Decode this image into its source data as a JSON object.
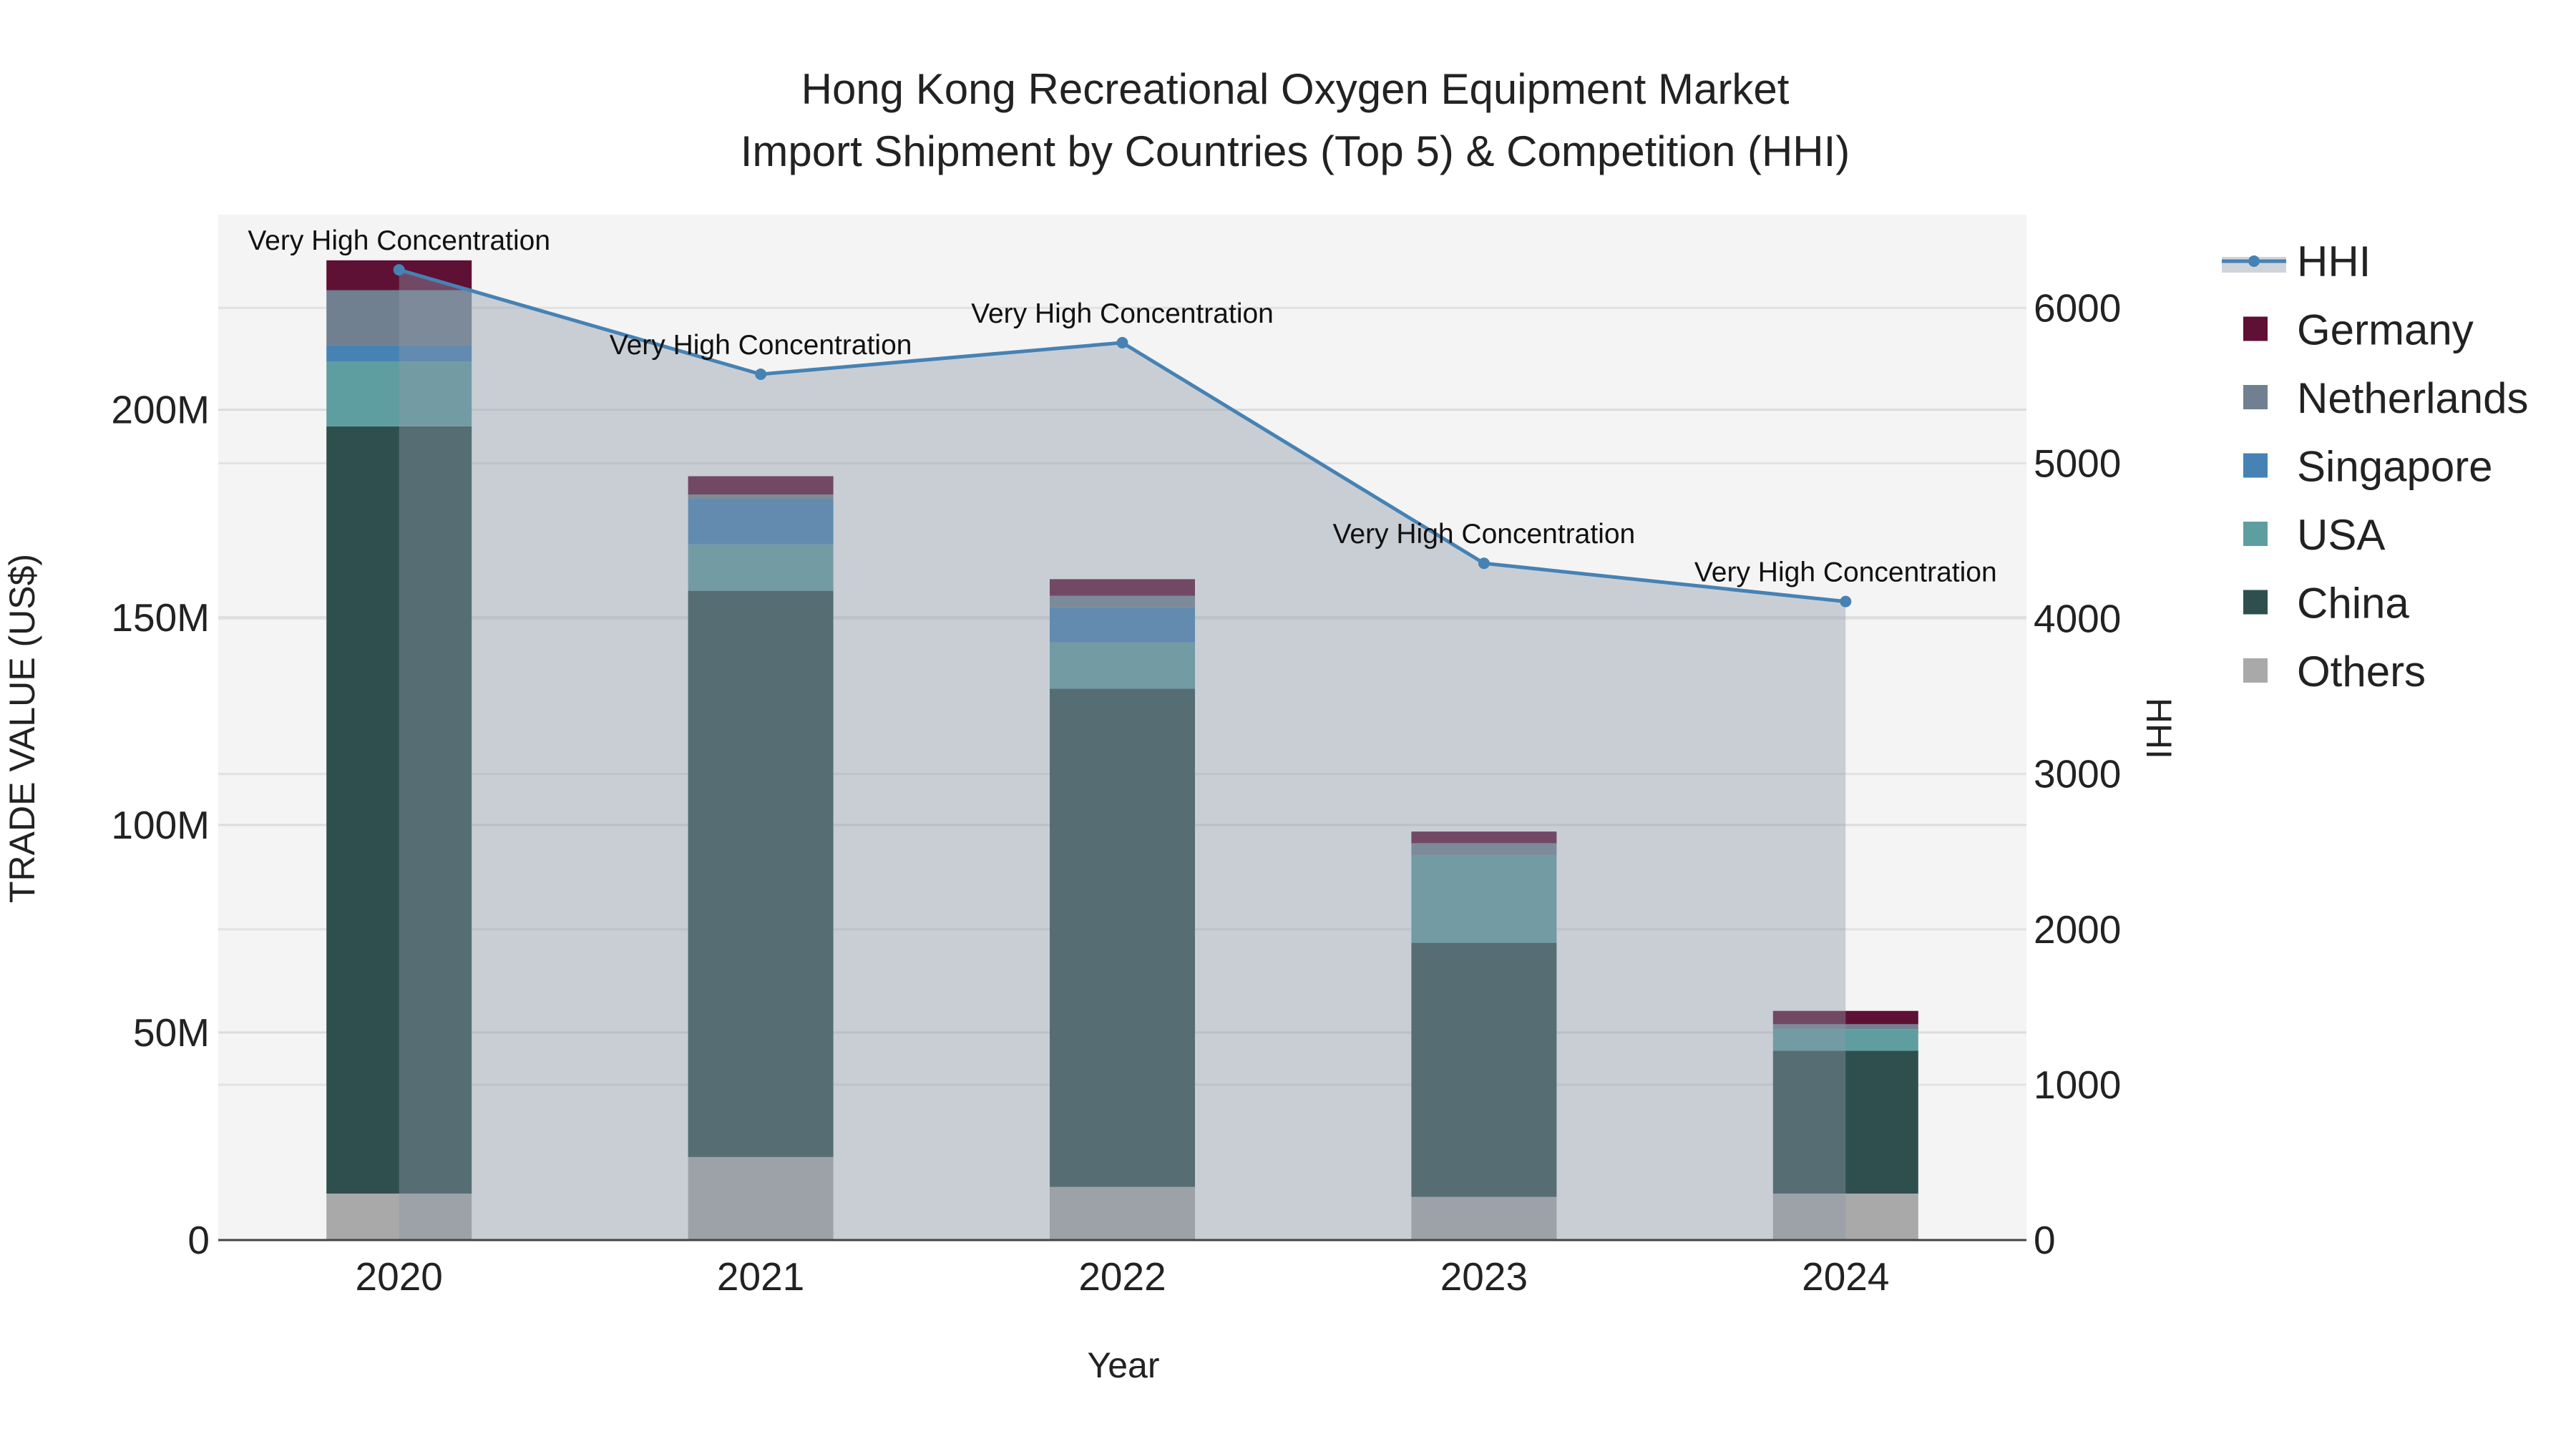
{
  "chart_data": {
    "type": "bar",
    "title_line1": "Hong Kong Recreational Oxygen Equipment Market",
    "title_line2": "Import Shipment by Countries (Top 5) & Competition (HHI)",
    "xlabel": "Year",
    "ylabel": "TRADE VALUE (US$)",
    "y2label": "HHI",
    "categories": [
      "2020",
      "2021",
      "2022",
      "2023",
      "2024"
    ],
    "ylim": [
      0,
      247
    ],
    "yticks": [
      0,
      50,
      100,
      150,
      200
    ],
    "ytick_labels": [
      "0",
      "50M",
      "100M",
      "150M",
      "200M"
    ],
    "y2lim": [
      0,
      6600
    ],
    "y2ticks": [
      0,
      1000,
      2000,
      3000,
      4000,
      5000,
      6000
    ],
    "y2tick_labels": [
      "0",
      "1000",
      "2000",
      "3000",
      "4000",
      "5000",
      "6000"
    ],
    "units": "million US$",
    "series": [
      {
        "name": "Others",
        "color": "#a9a9a9",
        "values": [
          11.2,
          20.0,
          12.8,
          10.4,
          11.2
        ]
      },
      {
        "name": "China",
        "color": "#2f4f4f",
        "values": [
          184.8,
          136.4,
          120.0,
          61.2,
          34.4
        ]
      },
      {
        "name": "USA",
        "color": "#5f9ea0",
        "values": [
          15.6,
          11.2,
          11.2,
          21.2,
          5.2
        ]
      },
      {
        "name": "Singapore",
        "color": "#4682b4",
        "values": [
          4.0,
          10.8,
          8.4,
          0.0,
          0.0
        ]
      },
      {
        "name": "Netherlands",
        "color": "#708090",
        "values": [
          13.2,
          1.2,
          2.8,
          2.8,
          1.2
        ]
      },
      {
        "name": "Germany",
        "color": "#5e1035",
        "values": [
          7.2,
          4.4,
          4.0,
          2.8,
          3.2
        ]
      }
    ],
    "hhi": {
      "name": "HHI",
      "color": "#4682b4",
      "values": [
        6245,
        5573,
        5776,
        4356,
        4110
      ]
    },
    "annotations": [
      "Very High Concentration",
      "Very High Concentration",
      "Very High Concentration",
      "Very High Concentration",
      "Very High Concentration"
    ],
    "legend": [
      "HHI",
      "Germany",
      "Netherlands",
      "Singapore",
      "USA",
      "China",
      "Others"
    ],
    "legend_position": "right",
    "grid": true
  }
}
